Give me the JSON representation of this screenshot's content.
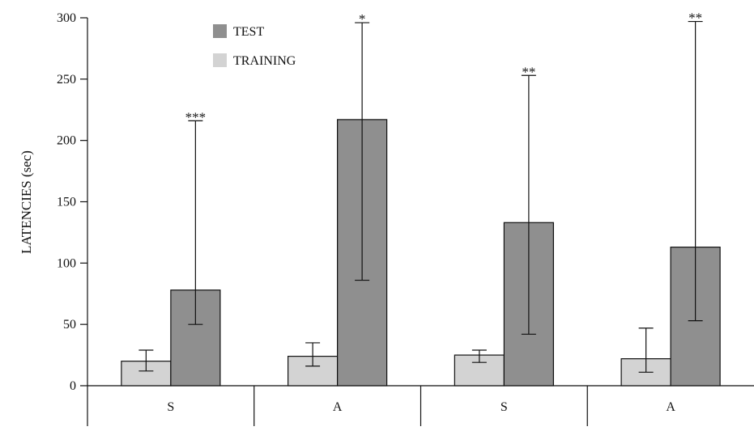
{
  "chart_data": {
    "type": "bar",
    "ylabel": "LATENCIES (sec)",
    "xlabel": "",
    "title": "",
    "ylim": [
      0,
      300
    ],
    "yticks": [
      0,
      50,
      100,
      150,
      200,
      250,
      300
    ],
    "categories": [
      "S",
      "A",
      "S",
      "A"
    ],
    "grid": false,
    "legend_position": "top-left",
    "series": [
      {
        "name": "TRAINING",
        "color": "#d3d3d3",
        "values": [
          20,
          24,
          25,
          22
        ],
        "err_low": [
          12,
          16,
          19,
          11
        ],
        "err_high": [
          29,
          35,
          29,
          47
        ]
      },
      {
        "name": "TEST",
        "color": "#8f8f8f",
        "values": [
          78,
          217,
          133,
          113
        ],
        "err_low": [
          50,
          86,
          42,
          53
        ],
        "err_high": [
          216,
          296,
          253,
          297
        ],
        "significance": [
          "***",
          "*",
          "**",
          "**"
        ]
      }
    ],
    "legend_order": [
      "TEST",
      "TRAINING"
    ]
  }
}
